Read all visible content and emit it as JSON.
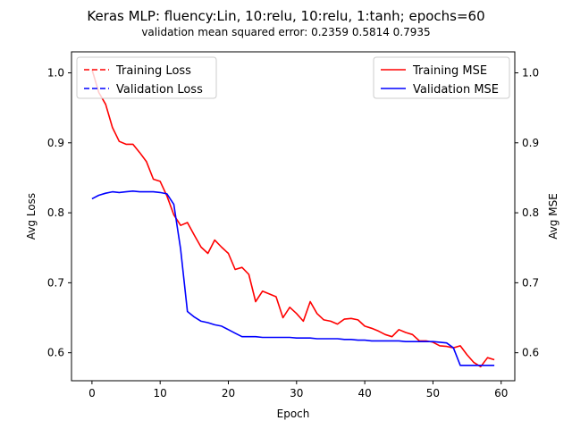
{
  "chart_data": {
    "type": "line",
    "title": "Keras MLP: fluency:Lin, 10:relu, 10:relu, 1:tanh; epochs=60",
    "subtitle": "validation mean squared error:  0.2359  0.5814  0.7935",
    "xlabel": "Epoch",
    "ylabel_left": "Avg Loss",
    "ylabel_right": "Avg MSE",
    "xlim": [
      -3,
      62
    ],
    "ylim": [
      0.56,
      1.03
    ],
    "xticks": [
      0,
      10,
      20,
      30,
      40,
      50,
      60
    ],
    "yticks": [
      0.6,
      0.7,
      0.8,
      0.9,
      1.0
    ],
    "ytick_labels": [
      "0.6",
      "0.7",
      "0.8",
      "0.9",
      "1.0"
    ],
    "grid": false,
    "colors": {
      "training": "#ff0000",
      "validation": "#0000ff"
    },
    "legends": [
      {
        "position": "upper-left",
        "entries": [
          {
            "label": "Training Loss",
            "color": "#ff0000",
            "dash": true
          },
          {
            "label": "Validation Loss",
            "color": "#0000ff",
            "dash": true
          }
        ]
      },
      {
        "position": "upper-right",
        "entries": [
          {
            "label": "Training MSE",
            "color": "#ff0000",
            "dash": false
          },
          {
            "label": "Validation MSE",
            "color": "#0000ff",
            "dash": false
          }
        ]
      }
    ],
    "series": [
      {
        "name": "Training MSE",
        "color": "#ff0000",
        "dash": false,
        "x": [
          0,
          1,
          2,
          3,
          4,
          5,
          6,
          7,
          8,
          9,
          10,
          11,
          12,
          13,
          14,
          15,
          16,
          17,
          18,
          19,
          20,
          21,
          22,
          23,
          24,
          25,
          26,
          27,
          28,
          29,
          30,
          31,
          32,
          33,
          34,
          35,
          36,
          37,
          38,
          39,
          40,
          41,
          42,
          43,
          44,
          45,
          46,
          47,
          48,
          49,
          50,
          51,
          52,
          53,
          54,
          55,
          56,
          57,
          58,
          59
        ],
        "values": [
          1.005,
          0.972,
          0.955,
          0.922,
          0.902,
          0.898,
          0.898,
          0.886,
          0.873,
          0.848,
          0.845,
          0.824,
          0.797,
          0.782,
          0.786,
          0.768,
          0.751,
          0.742,
          0.761,
          0.751,
          0.742,
          0.719,
          0.722,
          0.712,
          0.673,
          0.688,
          0.684,
          0.68,
          0.65,
          0.665,
          0.656,
          0.645,
          0.673,
          0.656,
          0.647,
          0.645,
          0.641,
          0.648,
          0.649,
          0.647,
          0.638,
          0.635,
          0.631,
          0.626,
          0.623,
          0.633,
          0.629,
          0.626,
          0.617,
          0.617,
          0.615,
          0.61,
          0.609,
          0.607,
          0.61,
          0.597,
          0.586,
          0.58,
          0.593,
          0.59
        ]
      },
      {
        "name": "Validation MSE",
        "color": "#0000ff",
        "dash": false,
        "x": [
          0,
          1,
          2,
          3,
          4,
          5,
          6,
          7,
          8,
          9,
          10,
          11,
          12,
          13,
          14,
          15,
          16,
          17,
          18,
          19,
          20,
          21,
          22,
          23,
          24,
          25,
          26,
          27,
          28,
          29,
          30,
          31,
          32,
          33,
          34,
          35,
          36,
          37,
          38,
          39,
          40,
          41,
          42,
          43,
          44,
          45,
          46,
          47,
          48,
          49,
          50,
          51,
          52,
          53,
          54,
          55,
          56,
          57,
          58,
          59
        ],
        "values": [
          0.82,
          0.825,
          0.828,
          0.83,
          0.829,
          0.83,
          0.831,
          0.83,
          0.83,
          0.83,
          0.829,
          0.827,
          0.812,
          0.748,
          0.659,
          0.651,
          0.645,
          0.643,
          0.64,
          0.638,
          0.633,
          0.628,
          0.623,
          0.623,
          0.623,
          0.622,
          0.622,
          0.622,
          0.622,
          0.622,
          0.621,
          0.621,
          0.621,
          0.62,
          0.62,
          0.62,
          0.62,
          0.619,
          0.619,
          0.618,
          0.618,
          0.617,
          0.617,
          0.617,
          0.617,
          0.617,
          0.616,
          0.616,
          0.616,
          0.616,
          0.616,
          0.615,
          0.614,
          0.607,
          0.582,
          0.582,
          0.582,
          0.582,
          0.582,
          0.582
        ]
      }
    ]
  }
}
